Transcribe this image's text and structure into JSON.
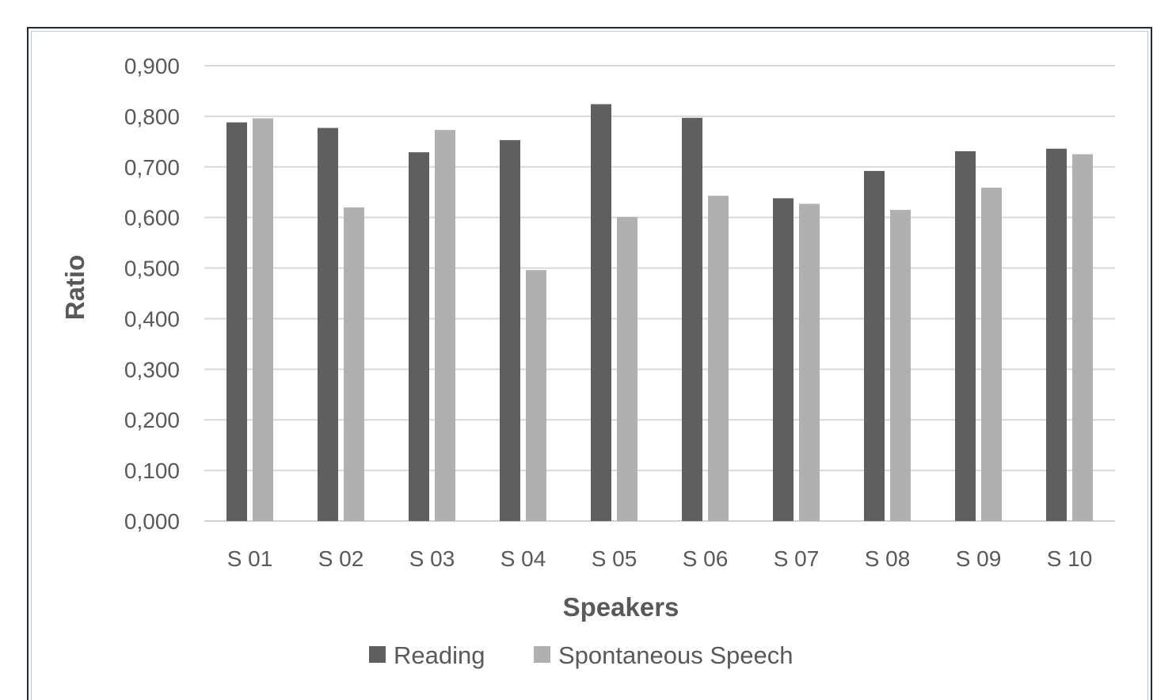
{
  "chart_data": {
    "type": "bar",
    "categories": [
      "S 01",
      "S 02",
      "S 03",
      "S 04",
      "S 05",
      "S 06",
      "S 07",
      "S 08",
      "S 09",
      "S 10"
    ],
    "series": [
      {
        "name": "Reading",
        "color": "#5f5f5f",
        "values": [
          0.788,
          0.777,
          0.729,
          0.753,
          0.824,
          0.797,
          0.638,
          0.692,
          0.731,
          0.736
        ]
      },
      {
        "name": "Spontaneous Speech",
        "color": "#b0b0b0",
        "values": [
          0.796,
          0.62,
          0.773,
          0.496,
          0.601,
          0.643,
          0.627,
          0.615,
          0.659,
          0.725
        ]
      }
    ],
    "xlabel": "Speakers",
    "ylabel": "Ratio",
    "ylim": [
      0,
      0.9
    ],
    "yticks": [
      "0,000",
      "0,100",
      "0,200",
      "0,300",
      "0,400",
      "0,500",
      "0,600",
      "0,700",
      "0,800",
      "0,900"
    ],
    "grid": true,
    "legend": "bottom"
  }
}
